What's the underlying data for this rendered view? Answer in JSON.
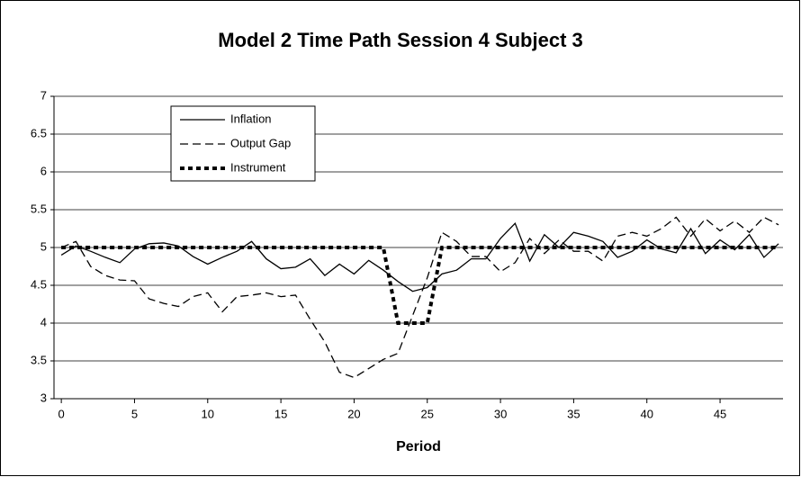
{
  "chart_data": {
    "type": "line",
    "title": "Model 2 Time Path Session 4 Subject 3",
    "xlabel": "Period",
    "x": [
      0,
      1,
      2,
      3,
      4,
      5,
      6,
      7,
      8,
      9,
      10,
      11,
      12,
      13,
      14,
      15,
      16,
      17,
      18,
      19,
      20,
      21,
      22,
      23,
      24,
      25,
      26,
      27,
      28,
      29,
      30,
      31,
      32,
      33,
      34,
      35,
      36,
      37,
      38,
      39,
      40,
      41,
      42,
      43,
      44,
      45,
      46,
      47,
      48,
      49
    ],
    "series": [
      {
        "name": "Inflation",
        "color": "#000000",
        "dash": "solid",
        "values": [
          4.9,
          5.02,
          4.95,
          4.87,
          4.8,
          4.98,
          5.05,
          5.06,
          5.02,
          4.88,
          4.78,
          4.87,
          4.95,
          5.08,
          4.85,
          4.72,
          4.74,
          4.85,
          4.63,
          4.78,
          4.65,
          4.83,
          4.7,
          4.55,
          4.42,
          4.47,
          4.65,
          4.7,
          4.85,
          4.85,
          5.12,
          5.32,
          4.82,
          5.17,
          5.0,
          5.2,
          5.15,
          5.08,
          4.87,
          4.95,
          5.1,
          4.98,
          4.93,
          5.25,
          4.92,
          5.1,
          4.97,
          5.17,
          4.87,
          5.05
        ]
      },
      {
        "name": "Output Gap",
        "color": "#000000",
        "dash": "dash",
        "values": [
          5.0,
          5.08,
          4.75,
          4.63,
          4.57,
          4.56,
          4.32,
          4.26,
          4.22,
          4.35,
          4.4,
          4.15,
          4.35,
          4.37,
          4.4,
          4.35,
          4.37,
          4.05,
          3.75,
          3.35,
          3.28,
          3.4,
          3.52,
          3.6,
          4.1,
          4.6,
          5.2,
          5.08,
          4.88,
          4.88,
          4.68,
          4.8,
          5.12,
          4.92,
          5.1,
          4.95,
          4.95,
          4.82,
          5.15,
          5.2,
          5.15,
          5.25,
          5.4,
          5.15,
          5.38,
          5.22,
          5.35,
          5.2,
          5.4,
          5.3
        ]
      },
      {
        "name": "Instrument",
        "color": "#000000",
        "dash": "dot",
        "values": [
          5,
          5,
          5,
          5,
          5,
          5,
          5,
          5,
          5,
          5,
          5,
          5,
          5,
          5,
          5,
          5,
          5,
          5,
          5,
          5,
          5,
          5,
          5,
          4,
          4,
          4,
          5,
          5,
          5,
          5,
          5,
          5,
          5,
          5,
          5,
          5,
          5,
          5,
          5,
          5,
          5,
          5,
          5,
          5,
          5,
          5,
          5,
          5,
          5,
          5
        ]
      }
    ],
    "xlim": [
      -0.5,
      49.3
    ],
    "xticks": [
      0,
      5,
      10,
      15,
      20,
      25,
      30,
      35,
      40,
      45
    ],
    "ylim": [
      3,
      7
    ],
    "yticks": [
      3,
      3.5,
      4,
      4.5,
      5,
      5.5,
      6,
      6.5,
      7
    ],
    "grid": true,
    "legend": "upper left"
  }
}
